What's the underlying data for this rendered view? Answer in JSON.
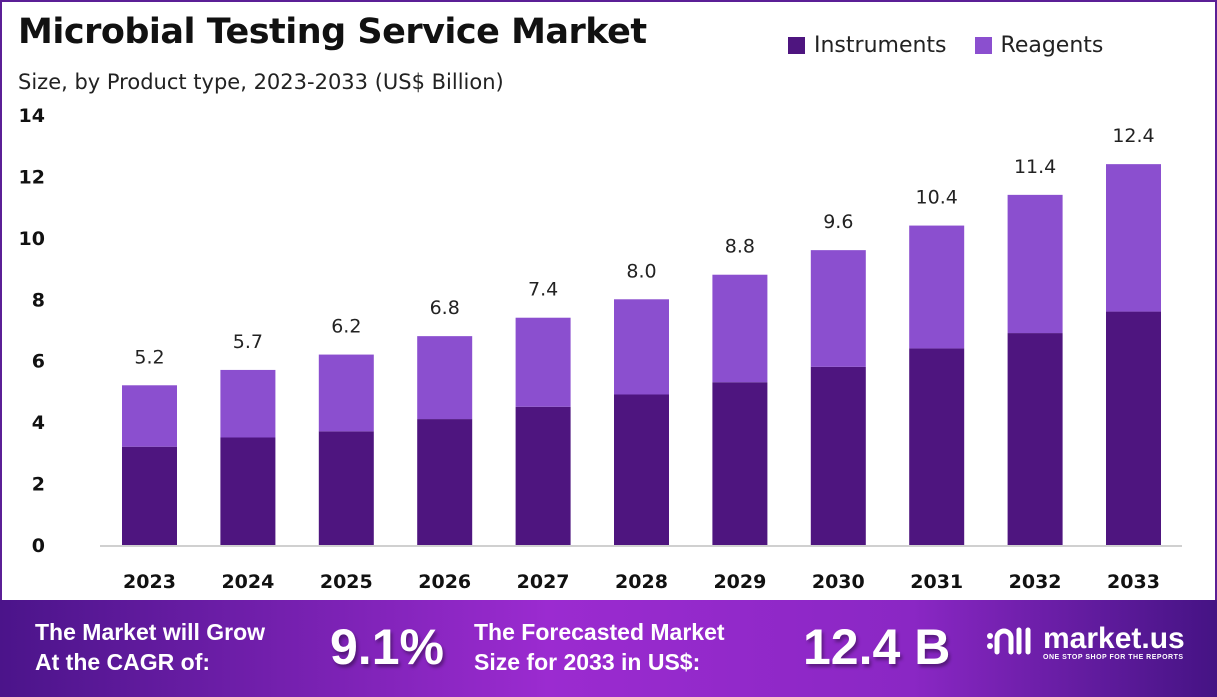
{
  "header": {
    "title": "Microbial Testing Service Market",
    "subtitle": "Size, by Product type, 2023-2033 (US$ Billion)"
  },
  "colors": {
    "instruments": "#4e157f",
    "reagents": "#8b4fcf",
    "banner": "#8a27c4"
  },
  "chart_data": {
    "type": "bar",
    "stacked": true,
    "title": "Microbial Testing Service Market",
    "subtitle": "Size, by Product type, 2023-2033 (US$ Billion)",
    "categories": [
      "2023",
      "2024",
      "2025",
      "2026",
      "2027",
      "2028",
      "2029",
      "2030",
      "2031",
      "2032",
      "2033"
    ],
    "series": [
      {
        "name": "Instruments",
        "values": [
          3.2,
          3.5,
          3.7,
          4.1,
          4.5,
          4.9,
          5.3,
          5.8,
          6.4,
          6.9,
          7.6
        ]
      },
      {
        "name": "Reagents",
        "values": [
          2.0,
          2.2,
          2.5,
          2.7,
          2.9,
          3.1,
          3.5,
          3.8,
          4.0,
          4.5,
          4.8
        ]
      }
    ],
    "totals": [
      "5.2",
      "5.7",
      "6.2",
      "6.8",
      "7.4",
      "8.0",
      "8.8",
      "9.6",
      "10.4",
      "11.4",
      "12.4"
    ],
    "ylim": [
      0,
      14
    ],
    "yticks": [
      "0",
      "2",
      "4",
      "6",
      "8",
      "10",
      "12",
      "14"
    ],
    "grid": false,
    "legend_position": "top-right"
  },
  "banner": {
    "cagr_label_1": "The Market will Grow",
    "cagr_label_2": "At the CAGR of:",
    "cagr_value": "9.1%",
    "forecast_label_1": "The Forecasted Market",
    "forecast_label_2": "Size for 2033 in US$:",
    "forecast_value": "12.4 B",
    "logo_name": "market.us",
    "logo_tagline": "ONE STOP SHOP FOR THE REPORTS"
  }
}
